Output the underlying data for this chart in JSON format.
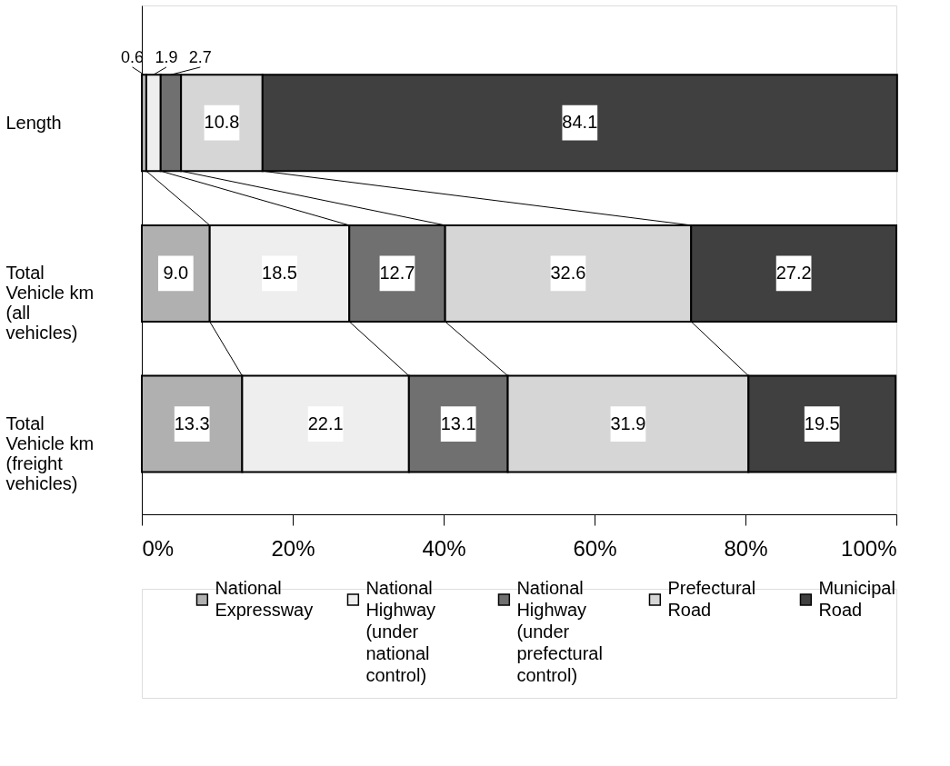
{
  "chart_data": {
    "type": "bar",
    "orientation": "horizontal",
    "stacked": true,
    "data_labels": true,
    "legend": "bottom",
    "grid": false,
    "categories": [
      "Length",
      "Total Vehicle km (all vehicles)",
      "Total Vehicle km (freight vehicles)"
    ],
    "xlim": [
      0,
      100
    ],
    "xticks": [
      {
        "value": 0,
        "label": "0%"
      },
      {
        "value": 20,
        "label": "20%"
      },
      {
        "value": 40,
        "label": "40%"
      },
      {
        "value": 60,
        "label": "60%"
      },
      {
        "value": 80,
        "label": "80%"
      },
      {
        "value": 100,
        "label": "100%"
      }
    ],
    "series": [
      {
        "name": "National Expressway",
        "color": "#b0b0b0",
        "values": [
          0.6,
          9.0,
          13.3
        ],
        "value_labels": [
          "0.6",
          "9.0",
          "13.3"
        ]
      },
      {
        "name": "National Highway (under national control)",
        "color": "#eeeeee",
        "values": [
          1.9,
          18.5,
          22.1
        ]
      },
      {
        "name": "National Highway (under prefectural control)",
        "color": "#707070",
        "values": [
          2.7,
          12.7,
          13.1
        ]
      },
      {
        "name": "Prefectural Road",
        "color": "#d6d6d6",
        "values": [
          10.8,
          32.6,
          31.9
        ]
      },
      {
        "name": "Municipal Road",
        "color": "#404040",
        "values": [
          84.1,
          27.2,
          19.5
        ]
      }
    ]
  }
}
